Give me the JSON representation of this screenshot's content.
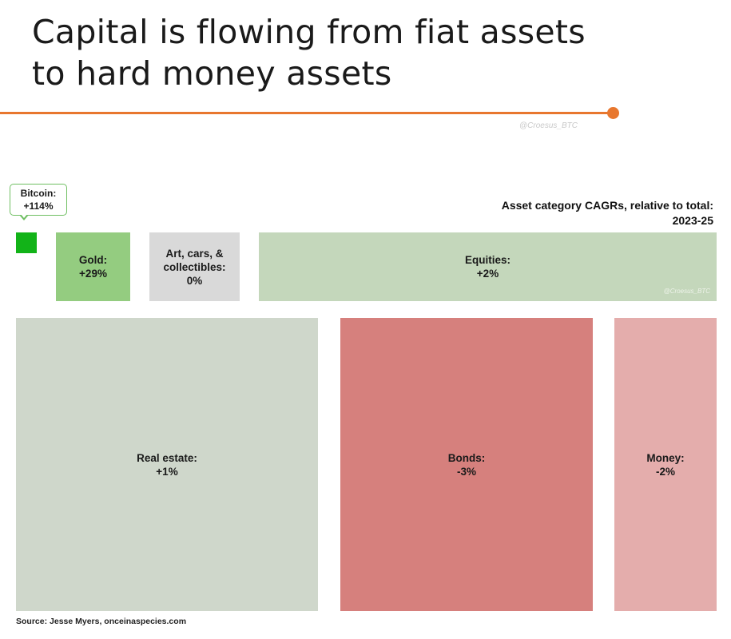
{
  "header": {
    "title_line1": "Capital is flowing from fiat assets",
    "title_line2": "to hard money assets",
    "watermark": "@Croesus_BTC",
    "accent_color": "#e8772e"
  },
  "chart_data": {
    "type": "treemap",
    "subtitle_line1": "Asset category CAGRs, relative to total:",
    "subtitle_line2": "2023-25",
    "tiles": [
      {
        "name": "Bitcoin:",
        "value_label": "+114%",
        "value": 114,
        "color": "#12b318"
      },
      {
        "name": "Gold:",
        "value_label": "+29%",
        "value": 29,
        "color": "#94cc80"
      },
      {
        "name_lines": [
          "Art, cars, &",
          "collectibles:"
        ],
        "value_label": "0%",
        "value": 0,
        "color": "#d9d9d9"
      },
      {
        "name": "Equities:",
        "value_label": "+2%",
        "value": 2,
        "color": "#c4d7bb",
        "watermark": "@Croesus_BTC"
      },
      {
        "name": "Real estate:",
        "value_label": "+1%",
        "value": 1,
        "color": "#cfd7cb"
      },
      {
        "name": "Bonds:",
        "value_label": "-3%",
        "value": -3,
        "color": "#d6807d"
      },
      {
        "name": "Money:",
        "value_label": "-2%",
        "value": -2,
        "color": "#e4adac"
      }
    ]
  },
  "footer": {
    "source": "Source:  Jesse Myers, onceinaspecies.com"
  }
}
